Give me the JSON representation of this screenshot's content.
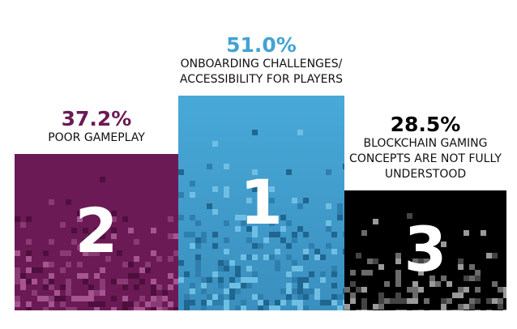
{
  "chart_data": {
    "type": "podium",
    "categories": [
      "POOR GAMEPLAY",
      "ONBOARDING CHALLENGES/ ACCESSIBILITY FOR PLAYERS",
      "BLOCKCHAIN GAMING CONCEPTS ARE NOT FULLY UNDERSTOOD"
    ],
    "values": [
      37.2,
      51.0,
      28.5
    ],
    "value_labels": [
      "37.2%",
      "51.0%",
      "28.5%"
    ],
    "ranks": [
      2,
      1,
      3
    ],
    "colors": [
      "#6b1a55",
      "#42a3d3",
      "#000000"
    ]
  }
}
